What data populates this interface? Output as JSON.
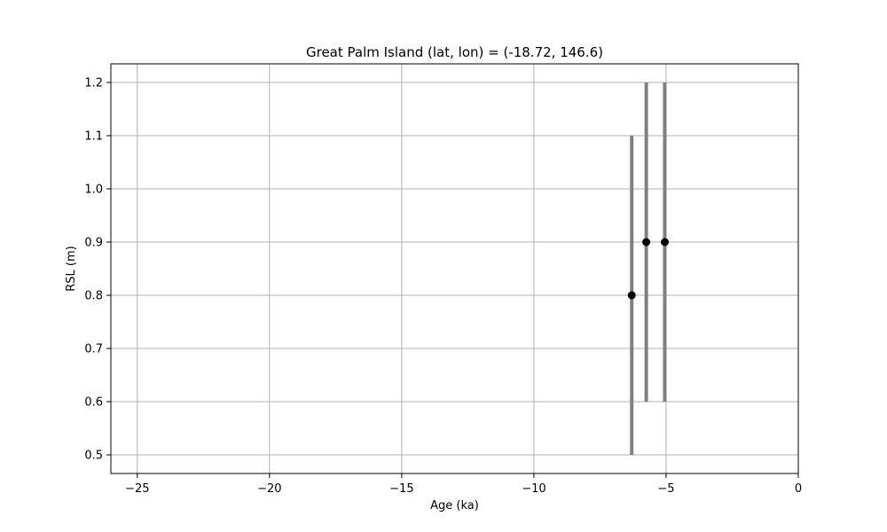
{
  "chart_data": {
    "type": "scatter",
    "title": "Great Palm Island (lat, lon) = (-18.72, 146.6)",
    "xlabel": "Age (ka)",
    "ylabel": "RSL (m)",
    "xlim": [
      -26,
      0
    ],
    "ylim": [
      0.465,
      1.235
    ],
    "xticks": [
      -25,
      -20,
      -15,
      -10,
      -5,
      0
    ],
    "xtick_labels": [
      "−25",
      "−20",
      "−15",
      "−10",
      "−5",
      "0"
    ],
    "yticks": [
      0.5,
      0.6,
      0.7,
      0.8,
      0.9,
      1.0,
      1.1,
      1.2
    ],
    "ytick_labels": [
      "0.5",
      "0.6",
      "0.7",
      "0.8",
      "0.9",
      "1.0",
      "1.1",
      "1.2"
    ],
    "grid": true,
    "points": [
      {
        "x": -6.3,
        "y": 0.8,
        "y_low": 0.5,
        "y_high": 1.1
      },
      {
        "x": -5.75,
        "y": 0.9,
        "y_low": 0.6,
        "y_high": 1.2
      },
      {
        "x": -5.05,
        "y": 0.9,
        "y_low": 0.6,
        "y_high": 1.2
      }
    ],
    "colors": {
      "marker": "#000000",
      "errorbar": "#808080",
      "grid": "#b0b0b0",
      "axes": "#000000"
    }
  }
}
